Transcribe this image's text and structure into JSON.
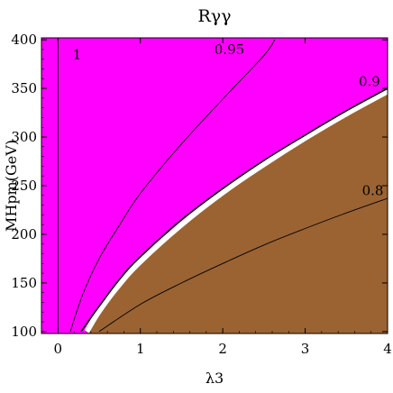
{
  "chart_data": {
    "type": "contour",
    "title": "Rγγ",
    "xlabel": "λ3",
    "ylabel": "MHpm(GeV)",
    "xlim": [
      -0.2,
      4.0
    ],
    "ylim": [
      98,
      402
    ],
    "xticks": [
      0,
      1,
      2,
      3,
      4
    ],
    "yticks": [
      100,
      150,
      200,
      250,
      300,
      350,
      400
    ],
    "colors": {
      "above": "#ff00ff",
      "below": "#9b6332",
      "band": "#ffffff",
      "line": "#000000"
    },
    "boundary": {
      "x": [
        0.35,
        0.5,
        0.75,
        1.0,
        1.5,
        2.0,
        2.5,
        3.0,
        3.5,
        4.0
      ],
      "y": [
        100,
        121,
        149,
        172,
        210,
        243,
        272,
        299,
        324,
        347
      ]
    },
    "contours": [
      {
        "label": "1",
        "x": [
          0.0,
          0.0
        ],
        "y": [
          100,
          400
        ]
      },
      {
        "label": "0.95",
        "x": [
          0.15,
          0.3,
          0.5,
          0.75,
          1.0,
          1.5,
          2.0,
          2.5,
          2.63
        ],
        "y": [
          100,
          138,
          175,
          210,
          242,
          293,
          339,
          384,
          400
        ]
      },
      {
        "label": "0.9",
        "x": [
          0.28,
          0.5,
          0.75,
          1.0,
          1.5,
          2.0,
          2.5,
          3.0,
          3.5,
          4.0
        ],
        "y": [
          100,
          126,
          154,
          177,
          215,
          247,
          276,
          302,
          327,
          350
        ]
      },
      {
        "label": "0.8",
        "x": [
          0.5,
          1.0,
          1.5,
          2.0,
          2.5,
          3.0,
          3.5,
          4.0
        ],
        "y": [
          100,
          128,
          150,
          170,
          189,
          206,
          222,
          237
        ]
      }
    ]
  }
}
